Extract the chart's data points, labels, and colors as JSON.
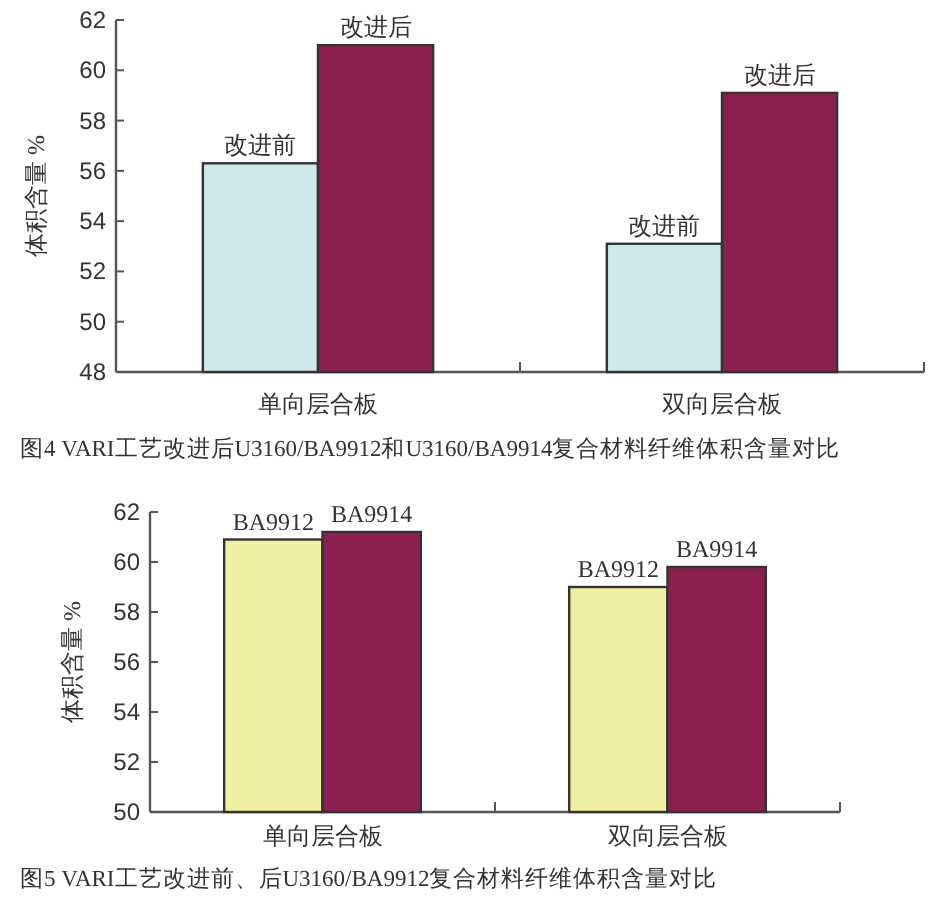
{
  "chart_data": [
    {
      "type": "bar",
      "title": "图4  VARI工艺改进后U3160/BA9912和U3160/BA9914复合材料纤维体积含量对比",
      "ylabel": "体积含量 %",
      "categories": [
        "单向层合板",
        "双向层合板"
      ],
      "ylim": [
        48,
        62
      ],
      "yticks": [
        48,
        50,
        52,
        54,
        56,
        58,
        60,
        62
      ],
      "series": [
        {
          "name": "改进前",
          "color": "#cfe8ec",
          "values": [
            56.3,
            53.1
          ]
        },
        {
          "name": "改进后",
          "color": "#8b1f4f",
          "values": [
            61.0,
            59.1
          ]
        }
      ]
    },
    {
      "type": "bar",
      "title": "图5  VARI工艺改进前、后U3160/BA9912复合材料纤维体积含量对比",
      "ylabel": "体积含量 %",
      "categories": [
        "单向层合板",
        "双向层合板"
      ],
      "ylim": [
        50,
        62
      ],
      "yticks": [
        50,
        52,
        54,
        56,
        58,
        60,
        62
      ],
      "series": [
        {
          "name": "BA9912",
          "color": "#f0eea0",
          "values": [
            60.9,
            59.0
          ]
        },
        {
          "name": "BA9914",
          "color": "#8b1f4f",
          "values": [
            61.2,
            59.8
          ]
        }
      ]
    }
  ]
}
